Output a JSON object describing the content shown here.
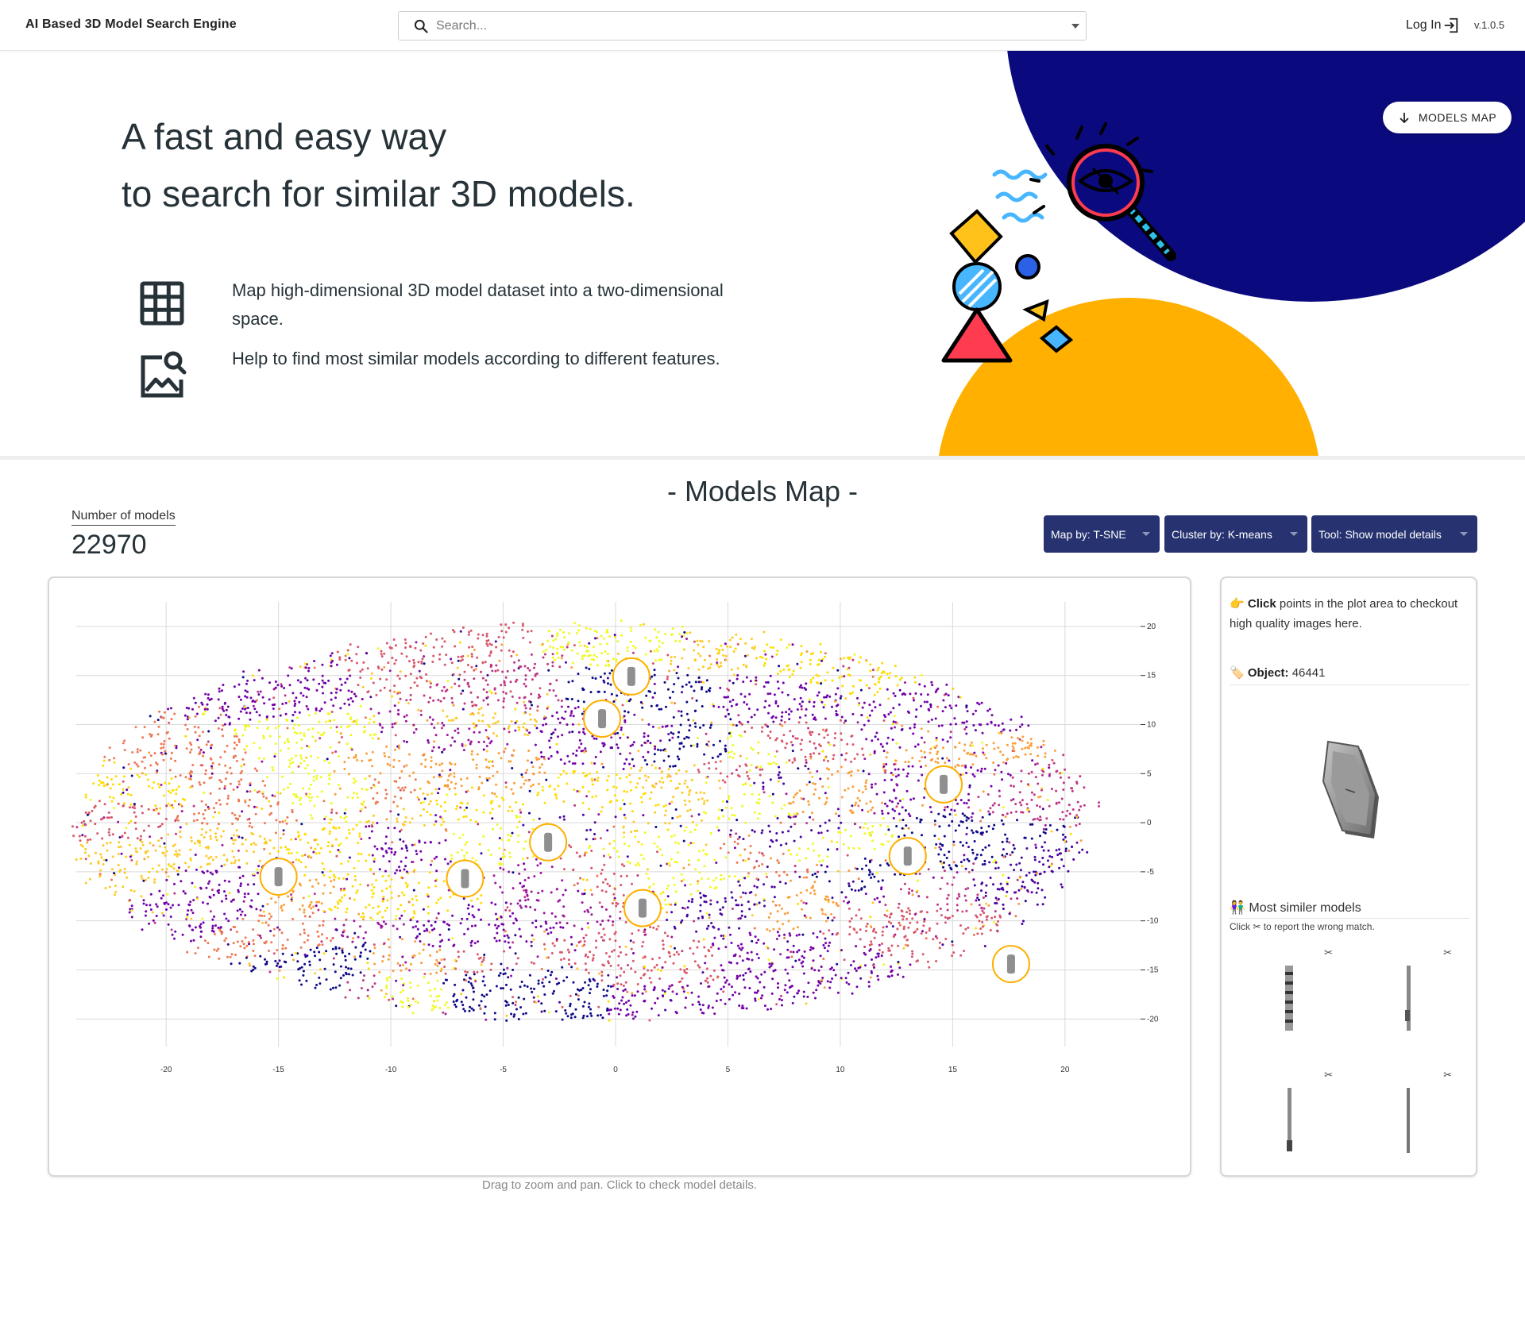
{
  "header": {
    "app_title": "AI Based 3D Model Search Engine",
    "search_placeholder": "Search...",
    "login_label": "Log In",
    "version": "v.1.0.5"
  },
  "hero": {
    "title_line1": "A fast and easy way",
    "title_line2": "to search for similar 3D models.",
    "features": [
      {
        "icon": "grid-icon",
        "text": "Map high-dimensional 3D model dataset into a two-dimensional space."
      },
      {
        "icon": "image-search-icon",
        "text": "Help to find most similar models according to different features."
      }
    ],
    "models_map_button": "MODELS MAP",
    "colors": {
      "navy": "#0a0a7e",
      "gold": "#ffb000"
    }
  },
  "models_map": {
    "section_title": "- Models Map -",
    "count_label": "Number of models",
    "count_value": "22970",
    "controls": [
      {
        "label": "Map by: T-SNE"
      },
      {
        "label": "Cluster by: K-means"
      },
      {
        "label": "Tool: Show model details"
      }
    ],
    "caption": "Drag to zoom and pan. Click to check model details.",
    "control_color": "#273370"
  },
  "chart_data": {
    "type": "scatter",
    "xlim": [
      -24,
      24
    ],
    "ylim": [
      -22,
      22.5
    ],
    "x_ticks": [
      -20,
      -15,
      -10,
      -5,
      0,
      5,
      10,
      15,
      20
    ],
    "y_ticks": [
      20,
      15,
      10,
      5,
      0,
      -5,
      -10,
      -15,
      -20
    ],
    "grid": true,
    "legend": "none",
    "palette": [
      "#0d0887",
      "#46039f",
      "#7201a8",
      "#9c179e",
      "#bd3786",
      "#d8576b",
      "#ed7953",
      "#fb9f3a",
      "#fdca26",
      "#f0f921"
    ],
    "cluster_colors": [
      "#0d0887",
      "#46039f",
      "#7201a8",
      "#9c179e",
      "#bd3786",
      "#d8576b",
      "#ed7953",
      "#fb9f3a",
      "#fdca26",
      "#f0f921",
      "#ffdd00"
    ],
    "thumbnail_markers": [
      {
        "x": 0.7,
        "y": 14.9
      },
      {
        "x": -0.6,
        "y": 10.6
      },
      {
        "x": 14.6,
        "y": 3.9
      },
      {
        "x": -3.0,
        "y": -2.0
      },
      {
        "x": 13.0,
        "y": -3.4
      },
      {
        "x": -15.0,
        "y": -5.5
      },
      {
        "x": -6.7,
        "y": -5.7
      },
      {
        "x": 1.2,
        "y": -8.7
      },
      {
        "x": 17.6,
        "y": -14.4
      }
    ]
  },
  "details": {
    "hint_bold": "Click",
    "hint_rest": " points in the plot area to checkout high quality images here.",
    "object_label": "Object:",
    "object_id": "46441",
    "similar_title": "Most similer models",
    "similar_note": "Click ✂ to report the wrong match.",
    "report_glyph": "✂",
    "similar_models": [
      "rod-model",
      "rod-model",
      "rod-model",
      "rod-model"
    ]
  }
}
